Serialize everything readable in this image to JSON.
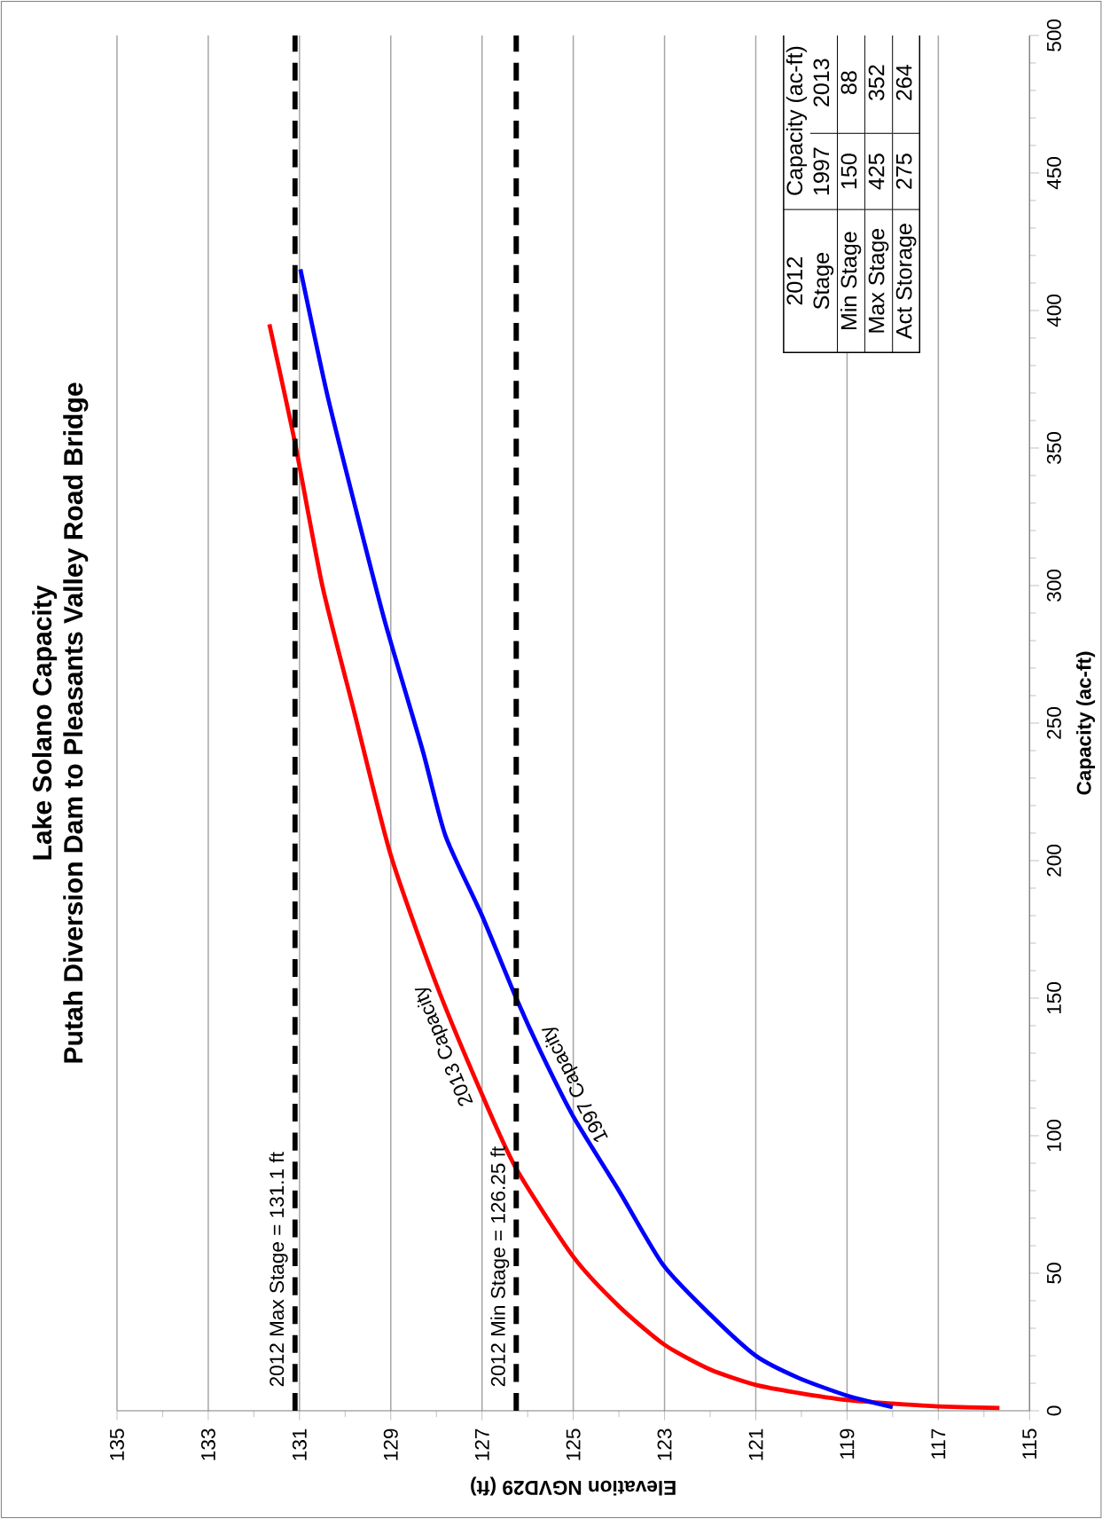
{
  "chart_data": {
    "type": "line",
    "title": "Lake Solano Capacity",
    "subtitle": "Putah Diversion Dam to Pleasants Valley Road Bridge",
    "xlabel": "Elevation NGVD29 (ft)",
    "ylabel": "Capacity (ac-ft)",
    "series": [
      {
        "name": "2013 Capacity",
        "color": "#ff0000",
        "x": [
          115.66,
          117,
          118,
          119,
          120.07,
          121,
          122,
          123,
          124,
          125,
          126.25,
          127,
          128,
          129,
          129.8,
          130.5,
          131.1,
          131.66
        ],
        "values": [
          1,
          1.6,
          2.6,
          3.9,
          6.5,
          9.4,
          15,
          24,
          38,
          56,
          88,
          115,
          155,
          202,
          254,
          300,
          352,
          395
        ]
      },
      {
        "name": "1997 Capacity",
        "color": "#0000ff",
        "x": [
          118,
          119,
          120.07,
          121,
          122,
          123.03,
          124,
          125,
          125.7,
          126.25,
          127,
          127.8,
          128.3,
          129.13,
          129.8,
          130.4,
          130.98
        ],
        "values": [
          1.3,
          5.5,
          12,
          20,
          35,
          53,
          80,
          107,
          130,
          150,
          180,
          209,
          240,
          287,
          330,
          370,
          415
        ]
      }
    ],
    "xlim": [
      135,
      115
    ],
    "ylim": [
      0,
      500
    ],
    "xticks": [
      135,
      133,
      131,
      129,
      127,
      125,
      123,
      121,
      119,
      117,
      115
    ],
    "yticks": [
      0,
      50,
      100,
      150,
      200,
      250,
      300,
      350,
      400,
      450,
      500
    ],
    "grid": "x",
    "ref_lines": [
      {
        "axis": "x",
        "value": 131.1,
        "label": "2012 Max Stage = 131.1 ft",
        "color": "#000000",
        "line_style": "dashed"
      },
      {
        "axis": "x",
        "value": 126.25,
        "label": "2012 Min Stage = 126.25 ft",
        "color": "#000000",
        "line_style": "dashed"
      }
    ],
    "annotations": [
      "2012",
      "Stage",
      "Capacity (ac-ft)",
      "1997",
      "2013",
      "Min Stage",
      "150",
      "88",
      "Max Stage",
      "425",
      "352",
      "Act Storage",
      "275",
      "264"
    ]
  }
}
